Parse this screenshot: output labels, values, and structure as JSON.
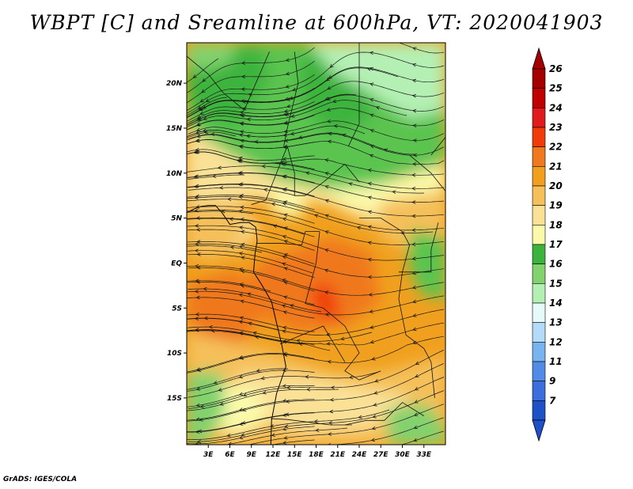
{
  "title": "WBPT [C] and Sreamline at 600hPa, VT: 2020041903",
  "credit": "GrADS: IGES/COLA",
  "lat_ticks": [
    {
      "value": 20,
      "label": "20N"
    },
    {
      "value": 15,
      "label": "15N"
    },
    {
      "value": 10,
      "label": "10N"
    },
    {
      "value": 5,
      "label": "5N"
    },
    {
      "value": 0,
      "label": "EQ"
    },
    {
      "value": -5,
      "label": "5S"
    },
    {
      "value": -10,
      "label": "10S"
    },
    {
      "value": -15,
      "label": "15S"
    }
  ],
  "lon_ticks": [
    {
      "value": 3,
      "label": "3E"
    },
    {
      "value": 6,
      "label": "6E"
    },
    {
      "value": 9,
      "label": "9E"
    },
    {
      "value": 12,
      "label": "12E"
    },
    {
      "value": 15,
      "label": "15E"
    },
    {
      "value": 18,
      "label": "18E"
    },
    {
      "value": 21,
      "label": "21E"
    },
    {
      "value": 24,
      "label": "24E"
    },
    {
      "value": 27,
      "label": "27E"
    },
    {
      "value": 30,
      "label": "30E"
    },
    {
      "value": 33,
      "label": "33E"
    }
  ],
  "colorbar": [
    {
      "label": "26",
      "color": "#a50000"
    },
    {
      "label": "25",
      "color": "#c00000"
    },
    {
      "label": "24",
      "color": "#e11b1b"
    },
    {
      "label": "23",
      "color": "#f03c0a"
    },
    {
      "label": "22",
      "color": "#f0781e"
    },
    {
      "label": "21",
      "color": "#f0a01e"
    },
    {
      "label": "20",
      "color": "#f5c05a"
    },
    {
      "label": "19",
      "color": "#fae196"
    },
    {
      "label": "18",
      "color": "#fafaaa"
    },
    {
      "label": "17",
      "color": "#3cb43c"
    },
    {
      "label": "16",
      "color": "#82d26e"
    },
    {
      "label": "15",
      "color": "#b4f0b4"
    },
    {
      "label": "14",
      "color": "#e6fafa"
    },
    {
      "label": "13",
      "color": "#b4dcfa"
    },
    {
      "label": "12",
      "color": "#78b4f0"
    },
    {
      "label": "11",
      "color": "#508ce6"
    },
    {
      "label": "9",
      "color": "#3c6edc"
    },
    {
      "label": "7",
      "color": "#1e50c8"
    }
  ],
  "colorbar_under_color": "#1e50c8",
  "colorbar_over_color": "#a50000",
  "map_colors": {
    "green_dark": "#3cb43c",
    "green": "#5ac450",
    "green_light": "#82d26e",
    "green_pale": "#b4f0b4",
    "yellow_pale": "#fafaaa",
    "yellow": "#fae196",
    "tan": "#f5c05a",
    "orange": "#f0a01e",
    "orange_dark": "#f0781e",
    "red_orange": "#f03c0a"
  }
}
